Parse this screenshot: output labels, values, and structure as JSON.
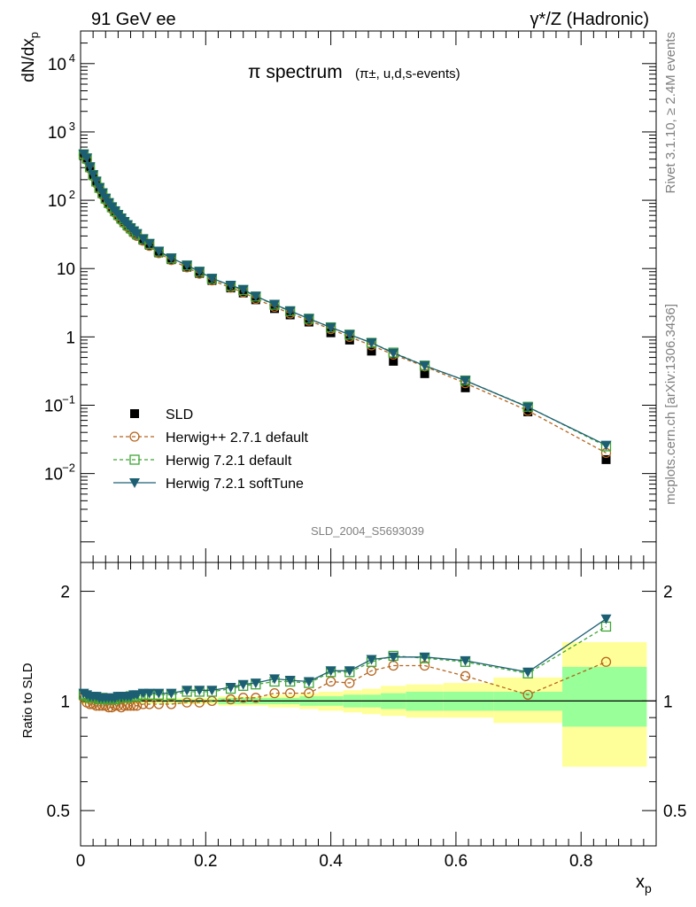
{
  "header": {
    "left": "91 GeV ee",
    "right": "γ*/Z (Hadronic)"
  },
  "side_text": {
    "rivet": "Rivet 3.1.10, ≥ 2.4M events",
    "mcplots": "mcplots.cern.ch [arXiv:1306.3436]"
  },
  "colors": {
    "data": "#000000",
    "herwigpp": "#b5651d",
    "herwig_default": "#3fa535",
    "herwig_soft": "#1c5f73",
    "band_inner": "#99ff99",
    "band_outer": "#ffff99"
  },
  "chart_data": [
    {
      "type": "scatter",
      "title": "π spectrum",
      "title_suffix": "(π±, u,d,s-events)",
      "analysis_id": "SLD_2004_S5693039",
      "xlabel": "x_p",
      "ylabel": "dN/dx_p",
      "y_scale": "log",
      "xlim": [
        0,
        0.92
      ],
      "ylim": [
        0.0005,
        30000
      ],
      "y_ticks": [
        "10^-2",
        "10^-1",
        "1",
        "10",
        "10^2",
        "10^3",
        "10^4"
      ],
      "legend_position": "bottom-left",
      "series": [
        {
          "name": "SLD",
          "marker": "filled-square",
          "x": [
            0.005,
            0.01,
            0.015,
            0.02,
            0.025,
            0.03,
            0.035,
            0.04,
            0.045,
            0.05,
            0.055,
            0.06,
            0.065,
            0.07,
            0.075,
            0.08,
            0.085,
            0.09,
            0.1,
            0.11,
            0.125,
            0.145,
            0.17,
            0.19,
            0.21,
            0.24,
            0.26,
            0.28,
            0.31,
            0.335,
            0.365,
            0.4,
            0.43,
            0.465,
            0.5,
            0.55,
            0.615,
            0.715,
            0.84
          ],
          "y": [
            450,
            400,
            300,
            230,
            185,
            150,
            125,
            105,
            90,
            78,
            68,
            60,
            53,
            47,
            42,
            38,
            34,
            31,
            26,
            22,
            17,
            13.5,
            10.5,
            8.5,
            6.7,
            5.2,
            4.4,
            3.5,
            2.6,
            2.1,
            1.65,
            1.15,
            0.9,
            0.62,
            0.44,
            0.29,
            0.18,
            0.08,
            0.016
          ]
        },
        {
          "name": "Herwig++ 2.7.1 default",
          "marker": "open-circle",
          "line": "dashed",
          "x": [
            0.005,
            0.01,
            0.015,
            0.02,
            0.025,
            0.03,
            0.035,
            0.04,
            0.045,
            0.05,
            0.055,
            0.06,
            0.065,
            0.07,
            0.075,
            0.08,
            0.085,
            0.09,
            0.1,
            0.11,
            0.125,
            0.145,
            0.17,
            0.19,
            0.21,
            0.24,
            0.26,
            0.28,
            0.31,
            0.335,
            0.365,
            0.4,
            0.43,
            0.465,
            0.5,
            0.55,
            0.615,
            0.715,
            0.84
          ],
          "y": [
            460,
            390,
            290,
            225,
            178,
            146,
            120,
            101,
            87,
            75,
            66,
            58,
            51,
            46,
            41,
            37,
            33,
            30,
            25.5,
            21.5,
            16.8,
            13.3,
            10.4,
            8.4,
            6.7,
            5.25,
            4.5,
            3.6,
            2.75,
            2.2,
            1.73,
            1.3,
            1.0,
            0.75,
            0.55,
            0.37,
            0.21,
            0.083,
            0.02
          ]
        },
        {
          "name": "Herwig 7.2.1 default",
          "marker": "open-square",
          "line": "dashed",
          "x": [
            0.005,
            0.01,
            0.015,
            0.02,
            0.025,
            0.03,
            0.035,
            0.04,
            0.045,
            0.05,
            0.055,
            0.06,
            0.065,
            0.07,
            0.075,
            0.08,
            0.085,
            0.09,
            0.1,
            0.11,
            0.125,
            0.145,
            0.17,
            0.19,
            0.21,
            0.24,
            0.26,
            0.28,
            0.31,
            0.335,
            0.365,
            0.4,
            0.43,
            0.465,
            0.5,
            0.55,
            0.615,
            0.715,
            0.84
          ],
          "y": [
            470,
            410,
            305,
            234,
            188,
            152,
            127,
            106,
            91,
            79,
            69,
            61,
            54,
            48,
            43,
            39,
            35,
            32,
            27,
            23,
            17.7,
            14.1,
            11.1,
            9.0,
            7.1,
            5.6,
            4.85,
            3.9,
            2.95,
            2.38,
            1.85,
            1.38,
            1.08,
            0.82,
            0.59,
            0.38,
            0.23,
            0.095,
            0.025
          ]
        },
        {
          "name": "Herwig 7.2.1 softTune",
          "marker": "filled-triangle-down",
          "line": "solid",
          "x": [
            0.005,
            0.01,
            0.015,
            0.02,
            0.025,
            0.03,
            0.035,
            0.04,
            0.045,
            0.05,
            0.055,
            0.06,
            0.065,
            0.07,
            0.075,
            0.08,
            0.085,
            0.09,
            0.1,
            0.11,
            0.125,
            0.145,
            0.17,
            0.19,
            0.21,
            0.24,
            0.26,
            0.28,
            0.31,
            0.335,
            0.365,
            0.4,
            0.43,
            0.465,
            0.5,
            0.55,
            0.615,
            0.715,
            0.84
          ],
          "y": [
            475,
            415,
            308,
            236,
            190,
            153,
            128,
            107,
            92,
            80,
            70,
            62,
            55,
            49,
            44,
            39.5,
            35.5,
            32.5,
            27.3,
            23.3,
            18,
            14.3,
            11.2,
            9.1,
            7.2,
            5.7,
            4.95,
            3.95,
            3.0,
            2.4,
            1.85,
            1.38,
            1.08,
            0.82,
            0.58,
            0.38,
            0.23,
            0.094,
            0.026
          ]
        }
      ]
    },
    {
      "type": "scatter",
      "ylabel": "Ratio to SLD",
      "xlabel": "x_p",
      "xlim": [
        0,
        0.92
      ],
      "ylim": [
        0.4,
        2.4
      ],
      "y_scale": "log",
      "y_ticks": [
        "0.5",
        "1",
        "2"
      ],
      "x_ticks": [
        "0",
        "0.2",
        "0.4",
        "0.6",
        "0.8"
      ],
      "bands": {
        "edges": [
          0.0,
          0.01,
          0.02,
          0.03,
          0.04,
          0.05,
          0.06,
          0.07,
          0.08,
          0.09,
          0.1,
          0.12,
          0.14,
          0.16,
          0.18,
          0.2,
          0.22,
          0.25,
          0.27,
          0.3,
          0.32,
          0.35,
          0.38,
          0.42,
          0.45,
          0.48,
          0.52,
          0.58,
          0.66,
          0.77,
          0.905
        ],
        "inner_lo": [
          0.99,
          0.99,
          0.99,
          0.99,
          0.99,
          0.99,
          0.99,
          0.99,
          0.99,
          0.99,
          0.99,
          0.99,
          0.99,
          0.99,
          0.99,
          0.99,
          0.98,
          0.98,
          0.98,
          0.98,
          0.98,
          0.97,
          0.97,
          0.96,
          0.96,
          0.95,
          0.94,
          0.94,
          0.94,
          0.85
        ],
        "inner_hi": [
          1.01,
          1.01,
          1.01,
          1.01,
          1.01,
          1.01,
          1.01,
          1.01,
          1.01,
          1.01,
          1.01,
          1.01,
          1.01,
          1.01,
          1.01,
          1.01,
          1.02,
          1.02,
          1.02,
          1.02,
          1.02,
          1.03,
          1.03,
          1.04,
          1.04,
          1.05,
          1.06,
          1.06,
          1.06,
          1.24
        ],
        "outer_lo": [
          0.98,
          0.98,
          0.98,
          0.98,
          0.98,
          0.98,
          0.98,
          0.98,
          0.98,
          0.98,
          0.98,
          0.98,
          0.98,
          0.98,
          0.98,
          0.98,
          0.97,
          0.97,
          0.97,
          0.96,
          0.96,
          0.95,
          0.94,
          0.93,
          0.92,
          0.91,
          0.9,
          0.9,
          0.87,
          0.66
        ],
        "outer_hi": [
          1.02,
          1.02,
          1.02,
          1.02,
          1.02,
          1.02,
          1.02,
          1.02,
          1.02,
          1.02,
          1.02,
          1.02,
          1.02,
          1.02,
          1.02,
          1.02,
          1.03,
          1.03,
          1.03,
          1.04,
          1.04,
          1.05,
          1.06,
          1.07,
          1.08,
          1.1,
          1.11,
          1.12,
          1.16,
          1.45
        ]
      },
      "series": [
        {
          "name": "Herwig++ 2.7.1 default",
          "marker": "open-circle",
          "line": "dashed",
          "x": [
            0.005,
            0.01,
            0.015,
            0.02,
            0.025,
            0.03,
            0.035,
            0.04,
            0.045,
            0.05,
            0.055,
            0.06,
            0.065,
            0.07,
            0.075,
            0.08,
            0.085,
            0.09,
            0.1,
            0.11,
            0.125,
            0.145,
            0.17,
            0.19,
            0.21,
            0.24,
            0.26,
            0.28,
            0.31,
            0.335,
            0.365,
            0.4,
            0.43,
            0.465,
            0.5,
            0.55,
            0.615,
            0.715,
            0.84
          ],
          "y": [
            1.02,
            0.99,
            0.98,
            0.98,
            0.97,
            0.97,
            0.97,
            0.97,
            0.96,
            0.96,
            0.97,
            0.97,
            0.96,
            0.97,
            0.97,
            0.97,
            0.97,
            0.97,
            0.98,
            0.98,
            0.98,
            0.98,
            0.99,
            0.99,
            1.0,
            1.01,
            1.02,
            1.02,
            1.05,
            1.05,
            1.05,
            1.13,
            1.12,
            1.21,
            1.25,
            1.25,
            1.17,
            1.04,
            1.28
          ]
        },
        {
          "name": "Herwig 7.2.1 default",
          "marker": "open-square",
          "line": "dashed",
          "x": [
            0.005,
            0.01,
            0.015,
            0.02,
            0.025,
            0.03,
            0.035,
            0.04,
            0.045,
            0.05,
            0.055,
            0.06,
            0.065,
            0.07,
            0.075,
            0.08,
            0.085,
            0.09,
            0.1,
            0.11,
            0.125,
            0.145,
            0.17,
            0.19,
            0.21,
            0.24,
            0.26,
            0.28,
            0.31,
            0.335,
            0.365,
            0.4,
            0.43,
            0.465,
            0.5,
            0.55,
            0.615,
            0.715,
            0.84
          ],
          "y": [
            1.04,
            1.03,
            1.02,
            1.02,
            1.02,
            1.01,
            1.02,
            1.01,
            1.01,
            1.01,
            1.01,
            1.02,
            1.02,
            1.02,
            1.02,
            1.03,
            1.03,
            1.03,
            1.04,
            1.04,
            1.04,
            1.04,
            1.06,
            1.06,
            1.06,
            1.08,
            1.1,
            1.11,
            1.13,
            1.13,
            1.12,
            1.2,
            1.2,
            1.28,
            1.33,
            1.31,
            1.28,
            1.19,
            1.6
          ]
        },
        {
          "name": "Herwig 7.2.1 softTune",
          "marker": "filled-triangle-down",
          "line": "solid",
          "x": [
            0.005,
            0.01,
            0.015,
            0.02,
            0.025,
            0.03,
            0.035,
            0.04,
            0.045,
            0.05,
            0.055,
            0.06,
            0.065,
            0.07,
            0.075,
            0.08,
            0.085,
            0.09,
            0.1,
            0.11,
            0.125,
            0.145,
            0.17,
            0.19,
            0.21,
            0.24,
            0.26,
            0.28,
            0.31,
            0.335,
            0.365,
            0.4,
            0.43,
            0.465,
            0.5,
            0.55,
            0.615,
            0.715,
            0.84
          ],
          "y": [
            1.05,
            1.04,
            1.03,
            1.03,
            1.03,
            1.02,
            1.02,
            1.02,
            1.02,
            1.02,
            1.02,
            1.03,
            1.03,
            1.03,
            1.03,
            1.03,
            1.04,
            1.04,
            1.05,
            1.05,
            1.05,
            1.05,
            1.07,
            1.07,
            1.07,
            1.09,
            1.11,
            1.12,
            1.15,
            1.14,
            1.13,
            1.21,
            1.21,
            1.3,
            1.32,
            1.32,
            1.29,
            1.2,
            1.68
          ]
        }
      ]
    }
  ]
}
